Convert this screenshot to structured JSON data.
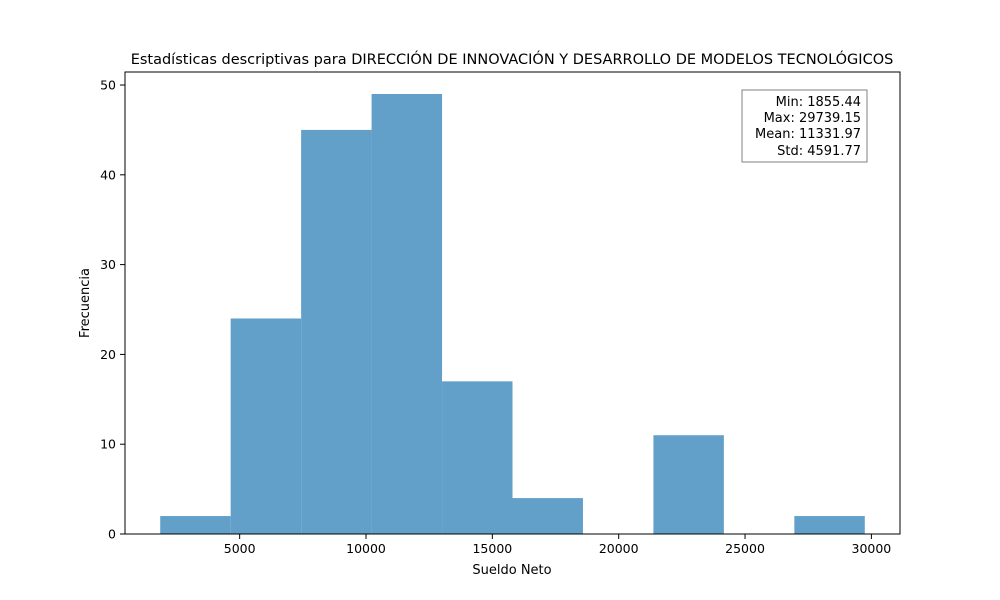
{
  "chart_data": {
    "type": "bar",
    "title": "Estadísticas descriptivas para DIRECCIÓN DE INNOVACIÓN Y DESARROLLO DE MODELOS TECNOLÓGICOS",
    "xlabel": "Sueldo Neto",
    "ylabel": "Frecuencia",
    "bin_edges": [
      1855.44,
      4643.81,
      7432.18,
      10220.55,
      13008.92,
      15797.3,
      18585.67,
      21374.04,
      24162.41,
      26950.78,
      29739.15
    ],
    "values": [
      2,
      24,
      45,
      49,
      17,
      4,
      0,
      11,
      0,
      2
    ],
    "xlim": [
      462.25,
      31132.34
    ],
    "ylim": [
      0,
      51.45
    ],
    "xticks": [
      5000,
      10000,
      15000,
      20000,
      25000,
      30000
    ],
    "yticks": [
      0,
      10,
      20,
      30,
      40,
      50
    ],
    "bar_color": "#62a0ca",
    "stats_box": {
      "min": "Min: 1855.44",
      "max": "Max: 29739.15",
      "mean": "Mean: 11331.97",
      "std": "Std: 4591.77"
    },
    "stats_box_position": "top-right"
  }
}
